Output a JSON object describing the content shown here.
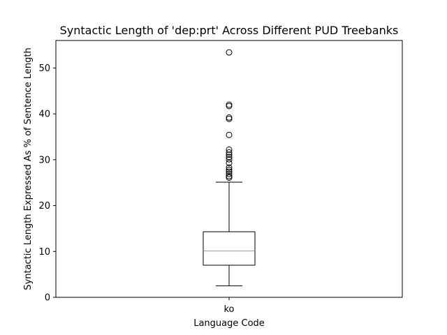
{
  "chart_data": {
    "type": "box",
    "title": "Syntactic Length of 'dep:prt' Across Different PUD Treebanks",
    "xlabel": "Language Code",
    "ylabel": "Syntactic Length Expressed As % of Sentence Length",
    "categories": [
      "ko"
    ],
    "ylim": [
      0,
      56
    ],
    "yticks": [
      0,
      10,
      20,
      30,
      40,
      50
    ],
    "grid": false,
    "boxes": [
      {
        "category": "ko",
        "whisker_low": 2.5,
        "q1": 7.0,
        "median": 10.1,
        "q3": 14.3,
        "whisker_high": 25.1,
        "outliers": [
          26.1,
          26.4,
          26.9,
          27.4,
          27.8,
          28.3,
          29.3,
          30.1,
          30.6,
          31.1,
          31.6,
          32.2,
          35.4,
          38.9,
          39.2,
          41.7,
          42.0,
          53.4
        ]
      }
    ],
    "colors": {
      "box": "#000000",
      "median": "#ff7f0e",
      "outlier": "#000000"
    }
  }
}
